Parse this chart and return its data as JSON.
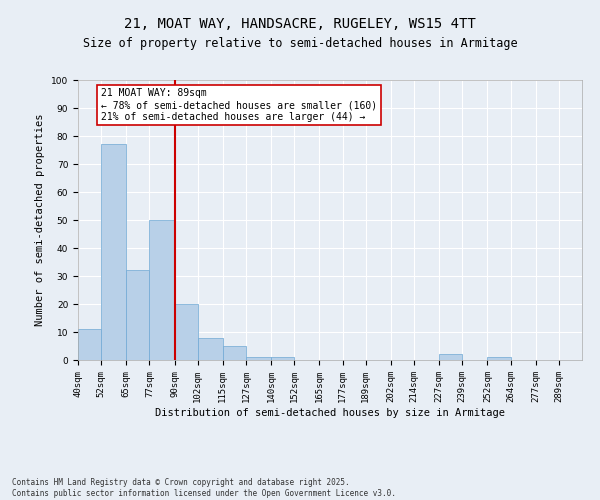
{
  "title1": "21, MOAT WAY, HANDSACRE, RUGELEY, WS15 4TT",
  "title2": "Size of property relative to semi-detached houses in Armitage",
  "xlabel": "Distribution of semi-detached houses by size in Armitage",
  "ylabel": "Number of semi-detached properties",
  "bins": [
    "40sqm",
    "52sqm",
    "65sqm",
    "77sqm",
    "90sqm",
    "102sqm",
    "115sqm",
    "127sqm",
    "140sqm",
    "152sqm",
    "165sqm",
    "177sqm",
    "189sqm",
    "202sqm",
    "214sqm",
    "227sqm",
    "239sqm",
    "252sqm",
    "264sqm",
    "277sqm",
    "289sqm"
  ],
  "bin_edges": [
    40,
    52,
    65,
    77,
    90,
    102,
    115,
    127,
    140,
    152,
    165,
    177,
    189,
    202,
    214,
    227,
    239,
    252,
    264,
    277,
    289
  ],
  "counts": [
    11,
    77,
    32,
    50,
    20,
    8,
    5,
    1,
    1,
    0,
    0,
    0,
    0,
    0,
    0,
    2,
    0,
    1,
    0,
    0
  ],
  "bar_color": "#b8d0e8",
  "bar_edge_color": "#6fa8d4",
  "vline_x": 90,
  "vline_color": "#cc0000",
  "annotation_text": "21 MOAT WAY: 89sqm\n← 78% of semi-detached houses are smaller (160)\n21% of semi-detached houses are larger (44) →",
  "annotation_box_color": "#ffffff",
  "annotation_box_edge": "#cc0000",
  "ylim": [
    0,
    100
  ],
  "yticks": [
    0,
    10,
    20,
    30,
    40,
    50,
    60,
    70,
    80,
    90,
    100
  ],
  "background_color": "#e8eef5",
  "footer_text": "Contains HM Land Registry data © Crown copyright and database right 2025.\nContains public sector information licensed under the Open Government Licence v3.0.",
  "title_fontsize": 10,
  "subtitle_fontsize": 8.5,
  "axis_label_fontsize": 7.5,
  "tick_fontsize": 6.5,
  "annotation_fontsize": 7
}
